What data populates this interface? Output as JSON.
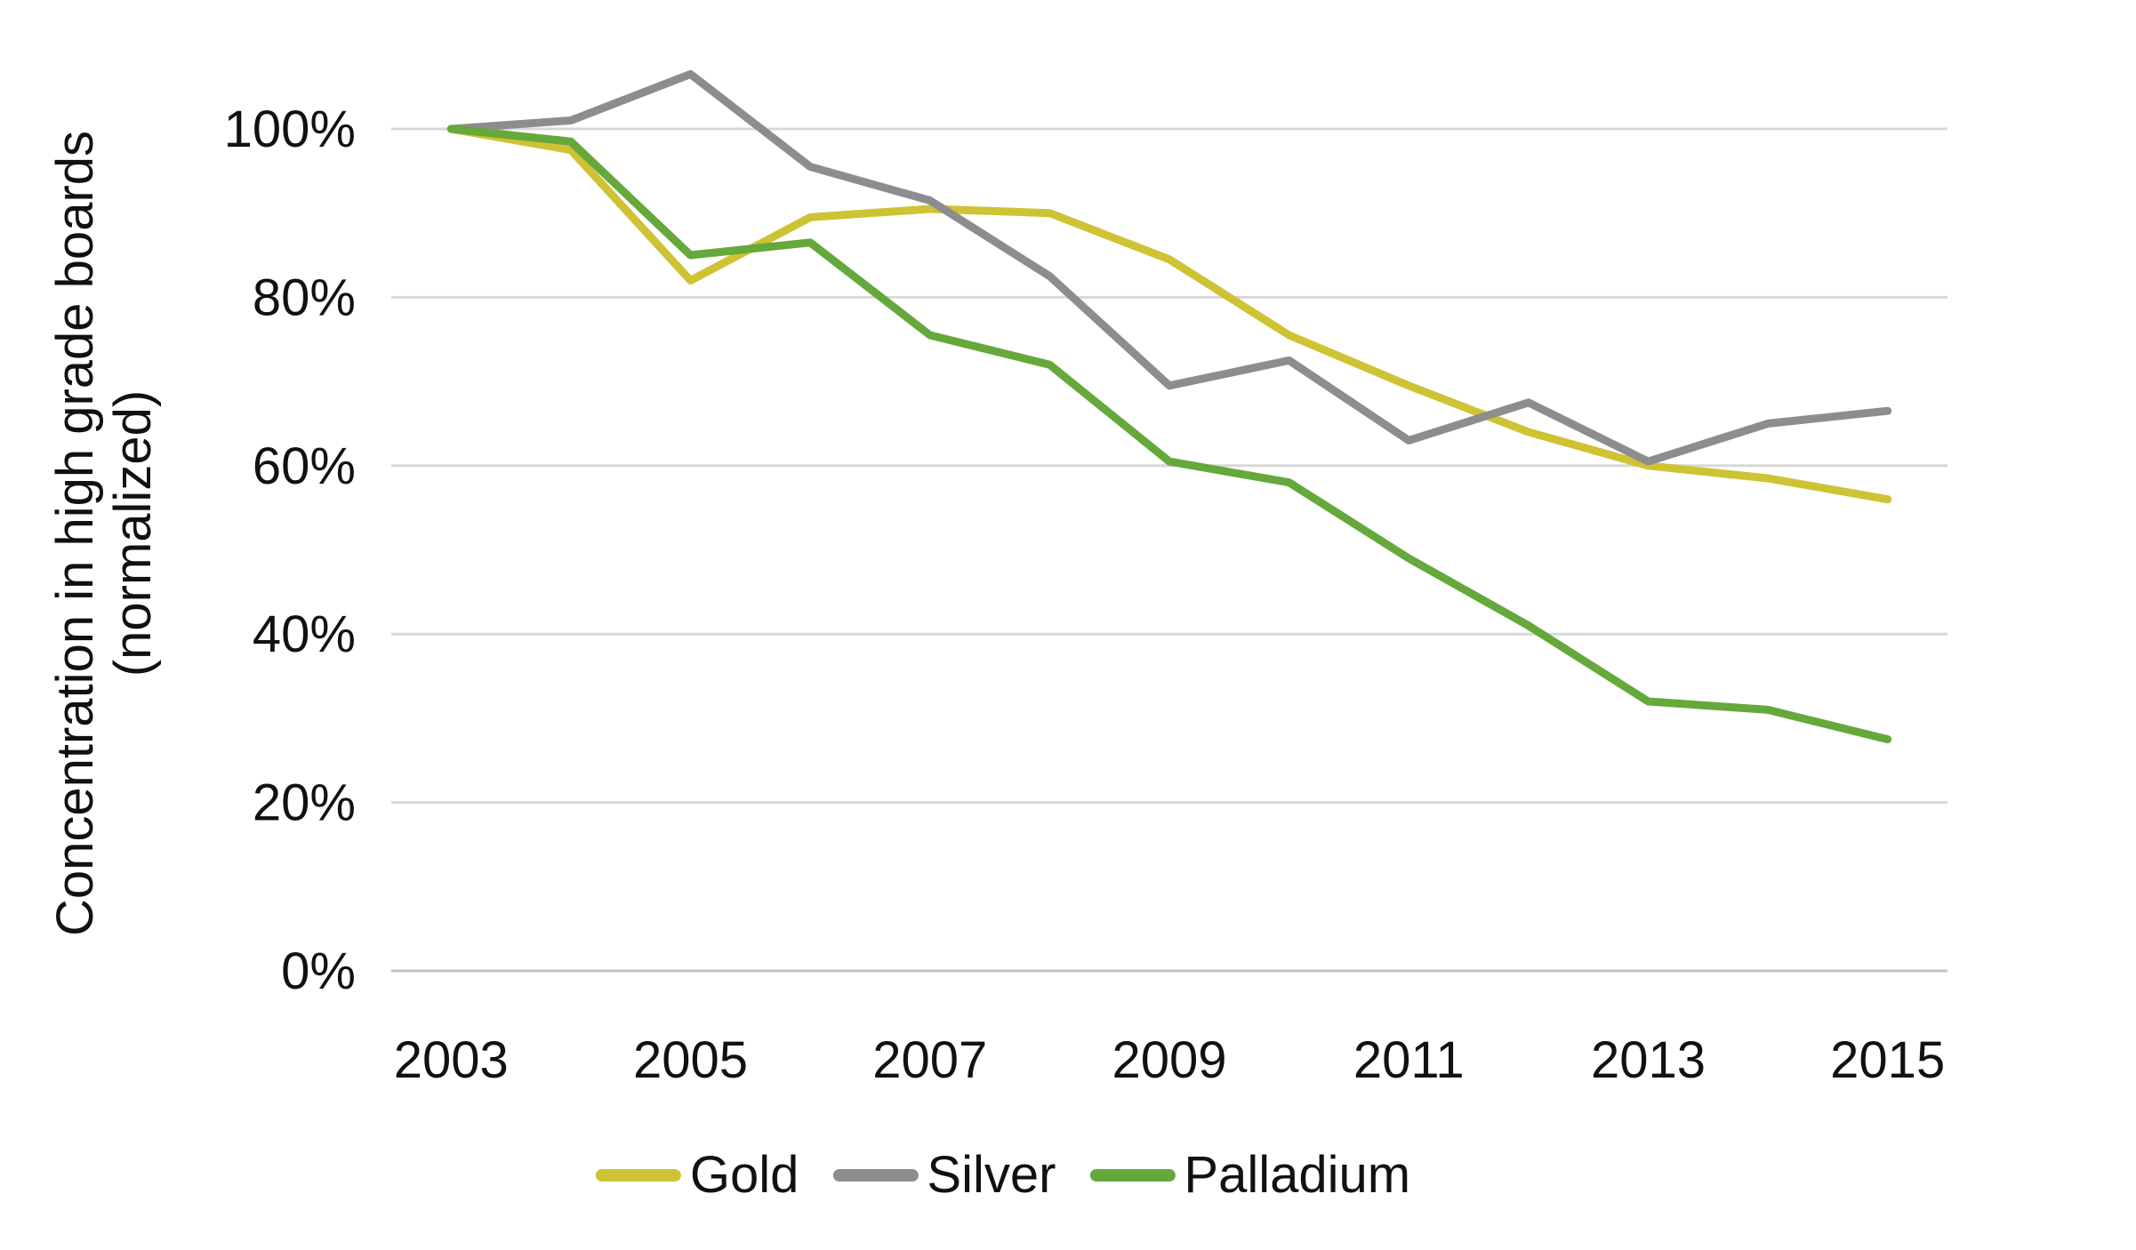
{
  "chart_data": {
    "type": "line",
    "title": "",
    "ylabel_line1": "Concentration in high grade boards",
    "ylabel_line2": "(normalized)",
    "xlabel": "",
    "x": [
      2003,
      2004,
      2005,
      2006,
      2007,
      2008,
      2009,
      2010,
      2011,
      2012,
      2013,
      2014,
      2015
    ],
    "x_tick_labels": [
      "2003",
      "2005",
      "2007",
      "2009",
      "2011",
      "2013",
      "2015"
    ],
    "y_tick_labels": [
      "100%",
      "80%",
      "60%",
      "40%",
      "20%",
      "0%"
    ],
    "y_tick_values": [
      100,
      80,
      60,
      40,
      20,
      0
    ],
    "ylim": [
      0,
      100
    ],
    "grid": true,
    "legend_position": "bottom",
    "series": [
      {
        "name": "Gold",
        "color": "#cdc334",
        "values": [
          100,
          97.5,
          82,
          89.5,
          90.5,
          90,
          84.5,
          75.5,
          69.5,
          64,
          60,
          58.5,
          56
        ]
      },
      {
        "name": "Silver",
        "color": "#8d8d8d",
        "values": [
          100,
          101,
          106.5,
          95.5,
          91.5,
          82.5,
          69.5,
          72.5,
          63,
          67.5,
          60.5,
          65,
          66.5
        ]
      },
      {
        "name": "Palladium",
        "color": "#65a83c",
        "values": [
          100,
          98.5,
          85,
          86.5,
          75.5,
          72,
          60.5,
          58,
          49,
          41,
          32,
          31,
          27.5
        ]
      }
    ],
    "colors": {
      "gridline": "#d8d8d8",
      "baseline": "#c2c2c2",
      "text": "#111111"
    }
  }
}
